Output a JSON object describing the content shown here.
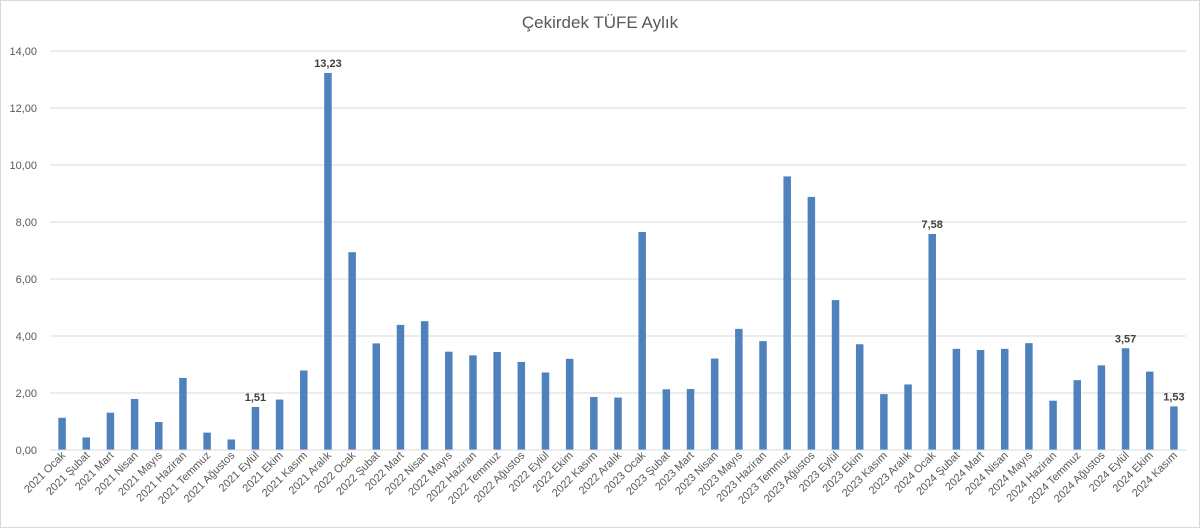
{
  "chart_data": {
    "type": "bar",
    "title": "Çekirdek TÜFE Aylık",
    "xlabel": "",
    "ylabel": "",
    "ylim": [
      0,
      14
    ],
    "yticks": [
      "0,00",
      "2,00",
      "4,00",
      "6,00",
      "8,00",
      "10,00",
      "12,00",
      "14,00"
    ],
    "ytick_values": [
      0,
      2,
      4,
      6,
      8,
      10,
      12,
      14
    ],
    "grid": true,
    "legend": "none",
    "bar_color": "#4f81bd",
    "categories": [
      "2021 Ocak",
      "2021 Şubat",
      "2021 Mart",
      "2021 Nisan",
      "2021 Mayıs",
      "2021 Haziran",
      "2021 Temmuz",
      "2021 Ağustos",
      "2021 Eylül",
      "2021 Ekim",
      "2021 Kasım",
      "2021 Aralık",
      "2022 Ocak",
      "2022 Şubat",
      "2022 Mart",
      "2022 Nisan",
      "2022 Mayıs",
      "2022 Haziran",
      "2022 Temmuz",
      "2022 Ağustos",
      "2022 Eylül",
      "2022 Ekim",
      "2022 Kasım",
      "2022 Aralık",
      "2023 Ocak",
      "2023 Şubat",
      "2023 Mart",
      "2023 Nisan",
      "2023 Mayıs",
      "2023 Haziran",
      "2023 Temmuz",
      "2023 Ağustos",
      "2023 Eylül",
      "2023 Ekim",
      "2023 Kasım",
      "2023 Aralık",
      "2024 Ocak",
      "2024 Şubat",
      "2024 Mart",
      "2024 Nisan",
      "2024 Mayıs",
      "2024 Haziran",
      "2024 Temmuz",
      "2024 Ağustos",
      "2024 Eylül",
      "2024 Ekim",
      "2024 Kasım"
    ],
    "values": [
      1.13,
      0.44,
      1.31,
      1.79,
      0.98,
      2.53,
      0.61,
      0.37,
      1.51,
      1.77,
      2.79,
      13.23,
      6.94,
      3.74,
      4.39,
      4.52,
      3.45,
      3.32,
      3.44,
      3.09,
      2.72,
      3.2,
      1.86,
      1.84,
      7.65,
      2.13,
      2.14,
      3.21,
      4.25,
      3.82,
      9.6,
      8.88,
      5.26,
      3.71,
      1.96,
      2.3,
      7.58,
      3.55,
      3.51,
      3.55,
      3.75,
      1.73,
      2.45,
      2.97,
      3.57,
      2.75,
      1.53
    ],
    "data_labels": [
      {
        "index": 8,
        "text": "1,51"
      },
      {
        "index": 11,
        "text": "13,23"
      },
      {
        "index": 36,
        "text": "7,58"
      },
      {
        "index": 44,
        "text": "3,57"
      },
      {
        "index": 46,
        "text": "1,53"
      }
    ]
  }
}
